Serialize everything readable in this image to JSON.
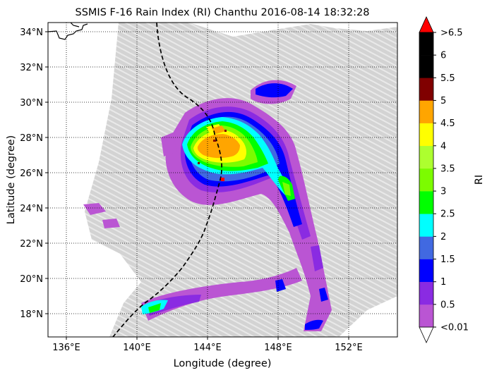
{
  "title": "SSMIS F-16 Rain Index (RI) Chanthu 2016-08-14 18:32:28",
  "xlabel": "Longitude (degree)",
  "ylabel": "Latitude (degree)",
  "x_ticks": [
    "136°E",
    "140°E",
    "144°E",
    "148°E",
    "152°E"
  ],
  "y_ticks": [
    "18°N",
    "20°N",
    "22°N",
    "24°N",
    "26°N",
    "28°N",
    "30°N",
    "32°N",
    "34°N"
  ],
  "colorbar": {
    "label": "RI",
    "tick_labels": [
      "<0.01",
      "0.5",
      "1",
      "1.5",
      "2",
      "2.5",
      "3",
      "3.5",
      "4",
      "4.5",
      "5",
      "5.5",
      "6",
      ">6.5"
    ],
    "colors": [
      "#ba55d3",
      "#8a2be2",
      "#0000ff",
      "#4169e1",
      "#00ffff",
      "#00ff00",
      "#7cfc00",
      "#adff2f",
      "#ffff00",
      "#ffa500",
      "#800000",
      "#000000",
      "#000000",
      "#ff0000"
    ]
  },
  "swath_color": "#d3d3d3",
  "track_marker_color": "#ff0000"
}
